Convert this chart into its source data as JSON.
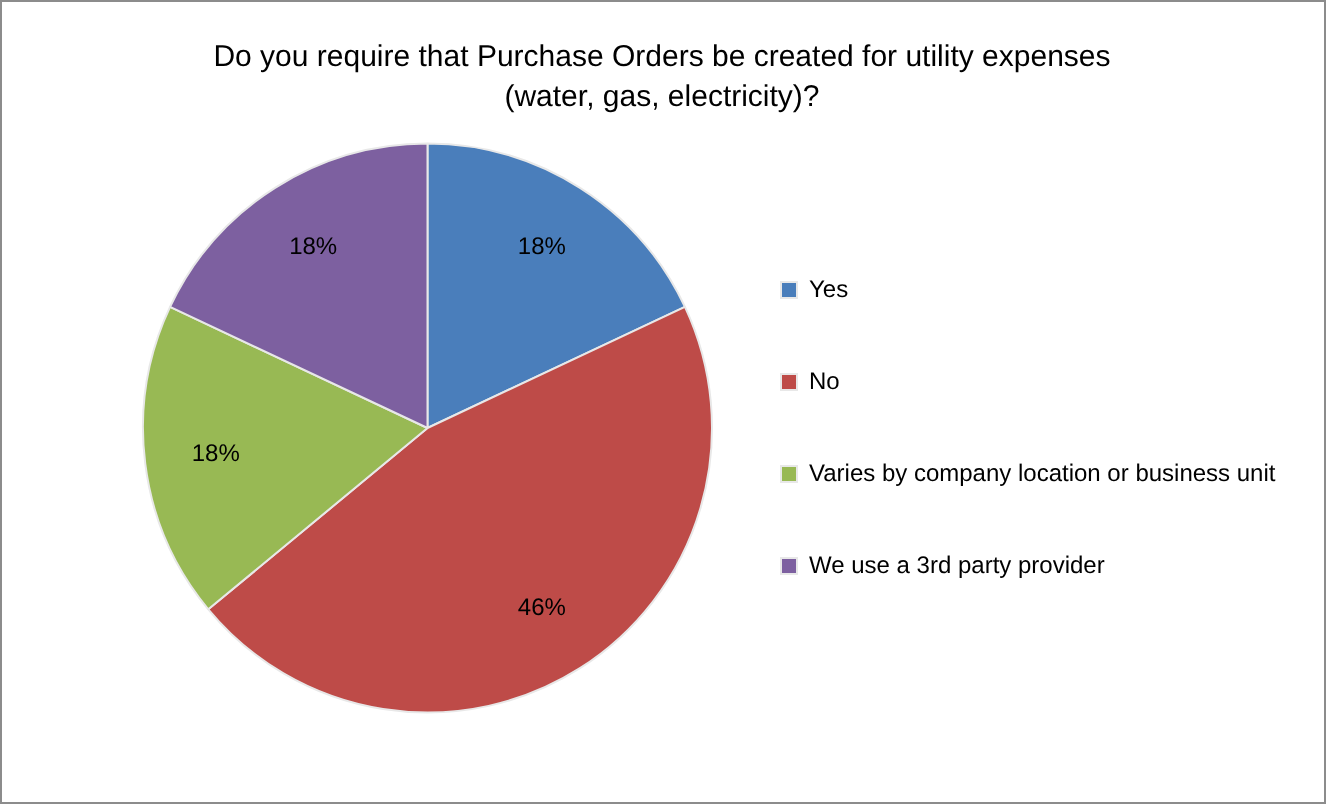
{
  "chart_data": {
    "type": "pie",
    "title": "Do you require that Purchase Orders be created for utility expenses (water, gas, electricity)?",
    "categories": [
      "Yes",
      "No",
      "Varies by company location or business unit",
      "We use a 3rd party provider"
    ],
    "values": [
      18,
      46,
      18,
      18
    ],
    "colors": [
      "#4a7ebb",
      "#be4b48",
      "#98b954",
      "#7d60a0"
    ],
    "value_labels": [
      "18%",
      "46%",
      "18%",
      "18%"
    ],
    "legend": "right"
  }
}
